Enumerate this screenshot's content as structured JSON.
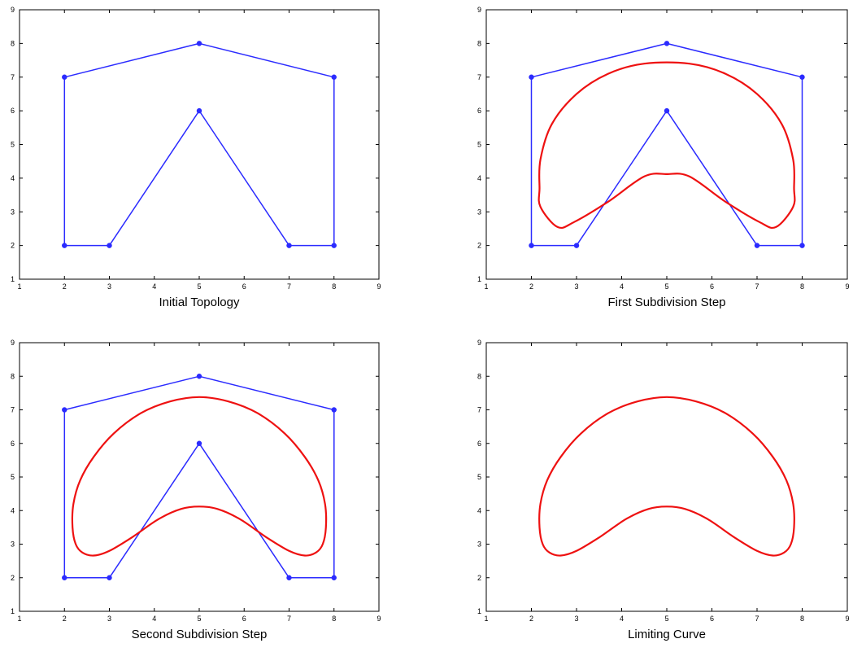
{
  "chart_data": [
    {
      "type": "line",
      "title": "",
      "xlabel": "Initial Topology",
      "ylabel": "",
      "xlim": [
        1,
        9
      ],
      "ylim": [
        1,
        9
      ],
      "xticks": [
        "1",
        "2",
        "3",
        "4",
        "5",
        "6",
        "7",
        "8",
        "9"
      ],
      "yticks": [
        "1",
        "2",
        "3",
        "4",
        "5",
        "6",
        "7",
        "8",
        "9"
      ],
      "grid": false,
      "series": [
        {
          "kind": "control-polygon",
          "color": "#2b2bff",
          "markers": true,
          "closed": true,
          "points": [
            [
              2,
              2
            ],
            [
              2,
              7
            ],
            [
              5,
              8
            ],
            [
              8,
              7
            ],
            [
              8,
              2
            ],
            [
              7,
              2
            ],
            [
              5,
              6
            ],
            [
              3,
              2
            ]
          ]
        }
      ]
    },
    {
      "type": "line",
      "title": "",
      "xlabel": "First Subdivision Step",
      "ylabel": "",
      "xlim": [
        1,
        9
      ],
      "ylim": [
        1,
        9
      ],
      "xticks": [
        "1",
        "2",
        "3",
        "4",
        "5",
        "6",
        "7",
        "8",
        "9"
      ],
      "yticks": [
        "1",
        "2",
        "3",
        "4",
        "5",
        "6",
        "7",
        "8",
        "9"
      ],
      "grid": false,
      "series": [
        {
          "kind": "control-polygon",
          "color": "#2b2bff",
          "markers": true,
          "closed": true,
          "points": [
            [
              2,
              2
            ],
            [
              2,
              7
            ],
            [
              5,
              8
            ],
            [
              8,
              7
            ],
            [
              8,
              2
            ],
            [
              7,
              2
            ],
            [
              5,
              6
            ],
            [
              3,
              2
            ]
          ]
        },
        {
          "kind": "subdivision-curve",
          "color": "#ee1111",
          "markers": false,
          "closed": true,
          "points": [
            [
              2.58,
              2.55
            ],
            [
              2.2,
              3.15
            ],
            [
              2.18,
              3.7
            ],
            [
              2.2,
              4.55
            ],
            [
              2.45,
              5.6
            ],
            [
              3.0,
              6.5
            ],
            [
              3.7,
              7.1
            ],
            [
              4.5,
              7.4
            ],
            [
              5.5,
              7.4
            ],
            [
              6.3,
              7.1
            ],
            [
              7.0,
              6.5
            ],
            [
              7.55,
              5.6
            ],
            [
              7.8,
              4.55
            ],
            [
              7.82,
              3.7
            ],
            [
              7.8,
              3.15
            ],
            [
              7.42,
              2.55
            ],
            [
              7.05,
              2.7
            ],
            [
              6.3,
              3.3
            ],
            [
              5.5,
              4.05
            ],
            [
              5.0,
              4.12
            ],
            [
              4.5,
              4.05
            ],
            [
              3.7,
              3.3
            ],
            [
              2.95,
              2.7
            ]
          ]
        }
      ]
    },
    {
      "type": "line",
      "title": "",
      "xlabel": "Second Subdivision Step",
      "ylabel": "",
      "xlim": [
        1,
        9
      ],
      "ylim": [
        1,
        9
      ],
      "xticks": [
        "1",
        "2",
        "3",
        "4",
        "5",
        "6",
        "7",
        "8",
        "9"
      ],
      "yticks": [
        "1",
        "2",
        "3",
        "4",
        "5",
        "6",
        "7",
        "8",
        "9"
      ],
      "grid": false,
      "series": [
        {
          "kind": "control-polygon",
          "color": "#2b2bff",
          "markers": true,
          "closed": true,
          "points": [
            [
              2,
              2
            ],
            [
              2,
              7
            ],
            [
              5,
              8
            ],
            [
              8,
              7
            ],
            [
              8,
              2
            ],
            [
              7,
              2
            ],
            [
              5,
              6
            ],
            [
              3,
              2
            ]
          ]
        },
        {
          "kind": "subdivision-curve",
          "color": "#ee1111",
          "markers": false,
          "closed": true,
          "points": [
            [
              2.65,
              2.66
            ],
            [
              2.4,
              2.75
            ],
            [
              2.25,
              3.0
            ],
            [
              2.18,
              3.5
            ],
            [
              2.2,
              4.2
            ],
            [
              2.35,
              4.9
            ],
            [
              2.65,
              5.6
            ],
            [
              3.1,
              6.3
            ],
            [
              3.7,
              6.9
            ],
            [
              4.35,
              7.25
            ],
            [
              5.0,
              7.38
            ],
            [
              5.65,
              7.25
            ],
            [
              6.3,
              6.9
            ],
            [
              6.9,
              6.3
            ],
            [
              7.35,
              5.6
            ],
            [
              7.65,
              4.9
            ],
            [
              7.8,
              4.2
            ],
            [
              7.82,
              3.5
            ],
            [
              7.75,
              3.0
            ],
            [
              7.6,
              2.75
            ],
            [
              7.35,
              2.66
            ],
            [
              7.0,
              2.8
            ],
            [
              6.5,
              3.2
            ],
            [
              5.9,
              3.75
            ],
            [
              5.4,
              4.05
            ],
            [
              5.0,
              4.12
            ],
            [
              4.6,
              4.05
            ],
            [
              4.1,
              3.75
            ],
            [
              3.5,
              3.2
            ],
            [
              3.0,
              2.8
            ]
          ]
        }
      ]
    },
    {
      "type": "line",
      "title": "",
      "xlabel": "Limiting Curve",
      "ylabel": "",
      "xlim": [
        1,
        9
      ],
      "ylim": [
        1,
        9
      ],
      "xticks": [
        "1",
        "2",
        "3",
        "4",
        "5",
        "6",
        "7",
        "8",
        "9"
      ],
      "yticks": [
        "1",
        "2",
        "3",
        "4",
        "5",
        "6",
        "7",
        "8",
        "9"
      ],
      "grid": false,
      "series": [
        {
          "kind": "limit-curve",
          "color": "#ee1111",
          "markers": false,
          "closed": true,
          "points": [
            [
              2.65,
              2.66
            ],
            [
              2.4,
              2.75
            ],
            [
              2.25,
              3.0
            ],
            [
              2.18,
              3.5
            ],
            [
              2.2,
              4.2
            ],
            [
              2.35,
              4.9
            ],
            [
              2.65,
              5.6
            ],
            [
              3.1,
              6.3
            ],
            [
              3.7,
              6.9
            ],
            [
              4.35,
              7.25
            ],
            [
              5.0,
              7.38
            ],
            [
              5.65,
              7.25
            ],
            [
              6.3,
              6.9
            ],
            [
              6.9,
              6.3
            ],
            [
              7.35,
              5.6
            ],
            [
              7.65,
              4.9
            ],
            [
              7.8,
              4.2
            ],
            [
              7.82,
              3.5
            ],
            [
              7.75,
              3.0
            ],
            [
              7.6,
              2.75
            ],
            [
              7.35,
              2.66
            ],
            [
              7.0,
              2.8
            ],
            [
              6.5,
              3.2
            ],
            [
              5.9,
              3.75
            ],
            [
              5.4,
              4.05
            ],
            [
              5.0,
              4.12
            ],
            [
              4.6,
              4.05
            ],
            [
              4.1,
              3.75
            ],
            [
              3.5,
              3.2
            ],
            [
              3.0,
              2.8
            ]
          ]
        }
      ]
    }
  ]
}
